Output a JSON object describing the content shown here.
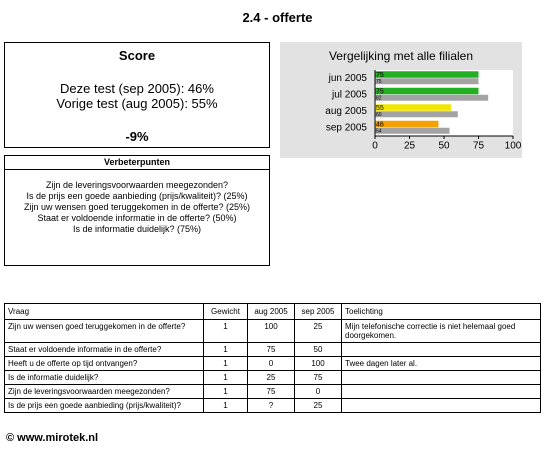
{
  "header": {
    "title": "2.4 - offerte"
  },
  "score": {
    "title": "Score",
    "current": "Deze test (sep 2005): 46%",
    "previous": "Vorige test (aug 2005): 55%",
    "difference": "-9%"
  },
  "chart_data": {
    "type": "bar",
    "orientation": "horizontal",
    "title": "Vergelijking met alle filialen",
    "categories": [
      "jun 2005",
      "jul 2005",
      "aug 2005",
      "sep 2005"
    ],
    "series": [
      {
        "colors": [
          "#22b022",
          "#22b022",
          "#f2e600",
          "#f5a200"
        ],
        "values": [
          75,
          75,
          55,
          46
        ]
      },
      {
        "color": "#a3a3a3",
        "values": [
          75,
          82,
          60,
          54
        ]
      }
    ],
    "xlim": [
      0,
      100
    ],
    "xticks": [
      0,
      25,
      50,
      75,
      100
    ],
    "grid": false
  },
  "improvements": {
    "title": "Verbeterpunten",
    "items": [
      "Zijn de leveringsvoorwaarden meegezonden?",
      "Is de prijs een goede aanbieding (prijs/kwaliteit)? (25%)",
      "Zijn uw wensen goed teruggekomen in de offerte? (25%)",
      "Staat er voldoende informatie in de offerte? (50%)",
      "Is de informatie duidelijk? (75%)"
    ]
  },
  "table": {
    "columns": [
      "Vraag",
      "Gewicht",
      "aug 2005",
      "sep 2005",
      "Toelichting"
    ],
    "rows": [
      [
        "Zijn uw wensen goed teruggekomen in de offerte?",
        "1",
        "100",
        "25",
        "Mijn telefonische correctie is niet helemaal goed doorgekomen."
      ],
      [
        "Staat er voldoende informatie in de offerte?",
        "1",
        "75",
        "50",
        null
      ],
      [
        "Heeft u de offerte op tijd ontvangen?",
        "1",
        "0",
        "100",
        "Twee dagen later al."
      ],
      [
        "Is de informatie duidelijk?",
        "1",
        "25",
        "75",
        null
      ],
      [
        "Zijn de leveringsvoorwaarden meegezonden?",
        "1",
        "75",
        "0",
        null
      ],
      [
        "Is de prijs een goede aanbieding (prijs/kwaliteit)?",
        "1",
        "?",
        "25",
        null
      ]
    ]
  },
  "footer": {
    "text": "© www.mirotek.nl"
  }
}
